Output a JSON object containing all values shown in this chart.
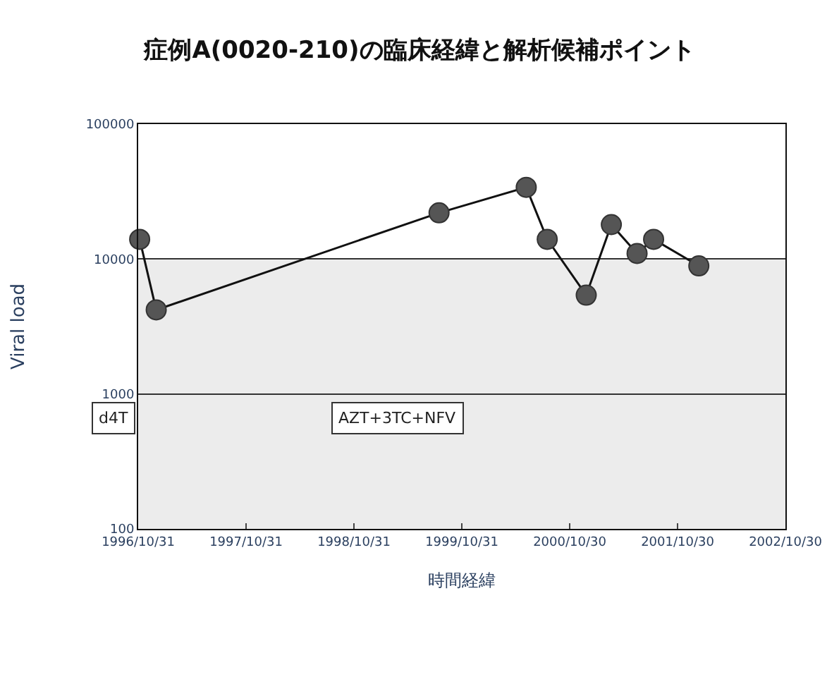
{
  "chart_data": {
    "type": "line",
    "title": "症例A(0020-210)の臨床経緯と解析候補ポイント",
    "xlabel": "時間経緯",
    "ylabel": "Viral load",
    "x": [
      "1996-11-05",
      "1996-12-31",
      "1999-08-15",
      "2000-06-05",
      "2000-08-15",
      "2000-12-25",
      "2001-03-20",
      "2001-06-15",
      "2001-08-10",
      "2002-01-10"
    ],
    "series": [
      {
        "color": "#555555",
        "values": [
          14000,
          4200,
          22000,
          34000,
          14000,
          5400,
          18000,
          11000,
          14000,
          8900
        ]
      }
    ],
    "log": "y",
    "ylim": [
      100,
      100000
    ],
    "yticks": [
      100,
      1000,
      10000,
      100000
    ],
    "xlim": [
      "1996-10-31",
      "2002-10-30"
    ],
    "xticks": [
      {
        "value": "1996-10-31",
        "label": "1996/10/31"
      },
      {
        "value": "1997-10-31",
        "label": "1997/10/31"
      },
      {
        "value": "1998-10-31",
        "label": "1998/10/31"
      },
      {
        "value": "1999-10-31",
        "label": "1999/10/31"
      },
      {
        "value": "2000-10-30",
        "label": "2000/10/30"
      },
      {
        "value": "2001-10-30",
        "label": "2001/10/30"
      },
      {
        "value": "2002-10-30",
        "label": "2002/10/30"
      }
    ],
    "grid": "y",
    "marker": "circle",
    "line_style": "solid",
    "bands": [
      {
        "axis": "y",
        "from": 100,
        "to": 10000,
        "color": "#ececec"
      }
    ],
    "annotations": [
      "d4T",
      "AZT+3TC+NFV"
    ]
  }
}
